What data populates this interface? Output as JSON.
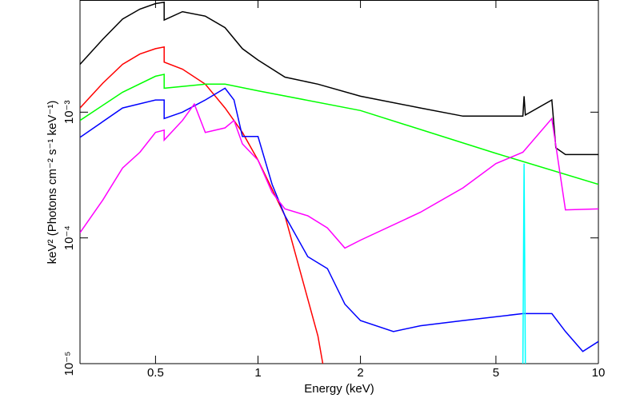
{
  "chart_data": {
    "type": "line",
    "x_label": "Energy (keV)",
    "y_label": "keV² (Photons cm⁻² s⁻¹ keV⁻¹)",
    "log_x": true,
    "log_y": true,
    "xlim": [
      0.3,
      10
    ],
    "ylim": [
      1e-05,
      0.0078
    ],
    "xticks": [
      0.5,
      1,
      2,
      5,
      10
    ],
    "yticks": [
      {
        "value": 1e-05,
        "label": "10⁻⁵"
      },
      {
        "value": 0.0001,
        "label": "10⁻⁴"
      },
      {
        "value": 0.001,
        "label": "10⁻³"
      }
    ],
    "series": [
      {
        "color": "#000000",
        "x": [
          0.3,
          0.35,
          0.4,
          0.45,
          0.5,
          0.53,
          0.53,
          0.6,
          0.7,
          0.8,
          0.9,
          1.0,
          1.2,
          1.5,
          2,
          3,
          4,
          6.0,
          6.05,
          6.1,
          7.3,
          7.5,
          8,
          10
        ],
        "values": [
          0.0024,
          0.0038,
          0.0055,
          0.0066,
          0.0073,
          0.0075,
          0.0054,
          0.0063,
          0.0058,
          0.0047,
          0.0032,
          0.0026,
          0.0019,
          0.00167,
          0.00134,
          0.00108,
          0.00093,
          0.00093,
          0.00134,
          0.00095,
          0.00125,
          0.00052,
          0.00046,
          0.00046
        ]
      },
      {
        "color": "#ff0000",
        "x": [
          0.3,
          0.35,
          0.4,
          0.45,
          0.5,
          0.53,
          0.53,
          0.6,
          0.7,
          0.8,
          0.9,
          1.0,
          1.2,
          1.5,
          1.55
        ],
        "values": [
          0.00108,
          0.0017,
          0.0024,
          0.0029,
          0.0032,
          0.0033,
          0.0025,
          0.0022,
          0.00167,
          0.00108,
          0.00069,
          0.000415,
          0.00015,
          1.66e-05,
          1e-05
        ]
      },
      {
        "color": "#00ff00",
        "x": [
          0.3,
          0.4,
          0.5,
          0.53,
          0.53,
          0.7,
          0.8,
          1,
          2,
          5,
          10
        ],
        "values": [
          0.00086,
          0.00144,
          0.00193,
          0.002,
          0.00155,
          0.00167,
          0.00167,
          0.00148,
          0.00103,
          0.00047,
          0.000267
        ]
      },
      {
        "color": "#0000ff",
        "x": [
          0.3,
          0.4,
          0.5,
          0.53,
          0.53,
          0.6,
          0.7,
          0.8,
          0.85,
          0.9,
          1.0,
          1.1,
          1.2,
          1.4,
          1.6,
          1.8,
          2,
          2.5,
          3,
          4,
          6,
          7.3,
          8,
          9,
          10
        ],
        "values": [
          0.00063,
          0.00108,
          0.00125,
          0.00125,
          0.00089,
          0.001,
          0.00125,
          0.00155,
          0.00125,
          0.00064,
          0.00064,
          0.000267,
          0.00015,
          7.1e-05,
          5.7e-05,
          2.97e-05,
          2.2e-05,
          1.8e-05,
          2e-05,
          2.2e-05,
          2.5e-05,
          2.5e-05,
          1.8e-05,
          1.25e-05,
          1.5e-05
        ]
      },
      {
        "color": "#ff00ff",
        "x": [
          0.3,
          0.35,
          0.4,
          0.45,
          0.5,
          0.53,
          0.53,
          0.6,
          0.65,
          0.7,
          0.8,
          0.85,
          0.9,
          1,
          1.1,
          1.2,
          1.4,
          1.6,
          1.8,
          2,
          3,
          4,
          5,
          6,
          7.3,
          8,
          10
        ],
        "values": [
          0.00011,
          0.0002,
          0.00036,
          0.00048,
          0.00069,
          0.00072,
          0.0006,
          0.00086,
          0.00116,
          0.00069,
          0.00075,
          0.00086,
          0.00056,
          0.000415,
          0.00023,
          0.00017,
          0.00015,
          0.00012,
          8.3e-05,
          9.6e-05,
          0.00016,
          0.00025,
          0.00039,
          0.00048,
          0.00089,
          0.000167,
          0.00017
        ]
      },
      {
        "color": "#00ffff",
        "x": [
          6.0,
          6.05,
          6.1
        ],
        "values": [
          1e-05,
          0.00039,
          1e-05
        ]
      }
    ]
  }
}
